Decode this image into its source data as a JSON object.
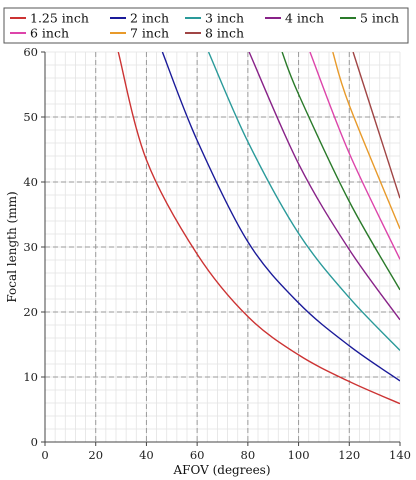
{
  "chart_data": {
    "type": "line",
    "title": "",
    "xlabel": "AFOV (degrees)",
    "ylabel": "Focal length (mm)",
    "xlim": [
      0,
      140
    ],
    "ylim": [
      0,
      60
    ],
    "x_ticks": [
      "0",
      "20",
      "40",
      "60",
      "80",
      "100",
      "120",
      "140"
    ],
    "y_ticks": [
      "0",
      "10",
      "20",
      "30",
      "40",
      "50",
      "60"
    ],
    "grid": true,
    "legend_position": "top",
    "series": [
      {
        "name": "1.25 inch",
        "color": "#cc3333",
        "points": [
          [
            28.9,
            60
          ],
          [
            40,
            43.4
          ],
          [
            60,
            28.9
          ],
          [
            80,
            19.3
          ],
          [
            100,
            13.4
          ],
          [
            120,
            9.3
          ],
          [
            140,
            5.9
          ]
        ]
      },
      {
        "name": "2 inch",
        "color": "#1a1a99",
        "points": [
          [
            46.3,
            60
          ],
          [
            60,
            46.4
          ],
          [
            80,
            30.8
          ],
          [
            100,
            21.4
          ],
          [
            120,
            14.8
          ],
          [
            140,
            9.4
          ]
        ]
      },
      {
        "name": "3 inch",
        "color": "#2a9a9a",
        "points": [
          [
            64.5,
            60
          ],
          [
            80,
            46.2
          ],
          [
            100,
            32.1
          ],
          [
            120,
            22.2
          ],
          [
            140,
            14.1
          ]
        ]
      },
      {
        "name": "4 inch",
        "color": "#882288",
        "points": [
          [
            80.5,
            60
          ],
          [
            100,
            42.8
          ],
          [
            120,
            29.6
          ],
          [
            140,
            18.8
          ]
        ]
      },
      {
        "name": "5 inch",
        "color": "#2a7a2a",
        "points": [
          [
            93.5,
            60
          ],
          [
            100,
            53.5
          ],
          [
            120,
            37.0
          ],
          [
            140,
            23.4
          ]
        ]
      },
      {
        "name": "6 inch",
        "color": "#dd44aa",
        "points": [
          [
            104.5,
            60
          ],
          [
            120,
            44.4
          ],
          [
            140,
            28.1
          ]
        ]
      },
      {
        "name": "7 inch",
        "color": "#e89a2a",
        "points": [
          [
            113.5,
            60
          ],
          [
            120,
            51.8
          ],
          [
            140,
            32.8
          ]
        ]
      },
      {
        "name": "8 inch",
        "color": "#a04545",
        "points": [
          [
            121.5,
            60
          ],
          [
            140,
            37.5
          ]
        ]
      }
    ]
  }
}
